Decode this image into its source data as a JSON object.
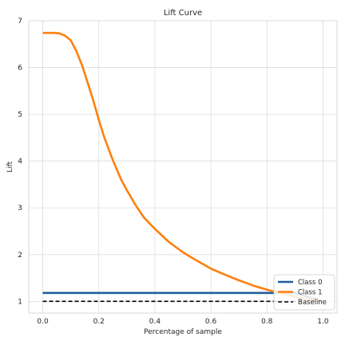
{
  "chart_data": {
    "type": "line",
    "title": "Lift Curve",
    "xlabel": "Percentage of sample",
    "ylabel": "Lift",
    "xlim": [
      -0.05,
      1.05
    ],
    "ylim": [
      0.75,
      7.0
    ],
    "x_ticks": [
      0.0,
      0.2,
      0.4,
      0.6,
      0.8,
      1.0
    ],
    "x_tick_labels": [
      "0.0",
      "0.2",
      "0.4",
      "0.6",
      "0.8",
      "1.0"
    ],
    "y_ticks": [
      1,
      2,
      3,
      4,
      5,
      6,
      7
    ],
    "y_tick_labels": [
      "1",
      "2",
      "3",
      "4",
      "5",
      "6",
      "7"
    ],
    "grid": true,
    "legend_position": "lower-right",
    "series": [
      {
        "name": "Class 0",
        "color": "#1f5f9e",
        "style": "solid",
        "x": [
          0.0,
          0.1,
          0.2,
          0.3,
          0.4,
          0.5,
          0.6,
          0.7,
          0.8,
          0.9,
          1.0
        ],
        "y": [
          1.18,
          1.18,
          1.18,
          1.18,
          1.18,
          1.18,
          1.18,
          1.18,
          1.18,
          1.18,
          1.0
        ]
      },
      {
        "name": "Class 1",
        "color": "#ff7f0e",
        "style": "solid",
        "x": [
          0.0,
          0.02,
          0.04,
          0.06,
          0.08,
          0.1,
          0.12,
          0.14,
          0.16,
          0.18,
          0.2,
          0.22,
          0.25,
          0.28,
          0.3,
          0.33,
          0.36,
          0.4,
          0.45,
          0.5,
          0.55,
          0.6,
          0.65,
          0.7,
          0.75,
          0.8,
          0.85,
          0.9,
          0.95,
          1.0
        ],
        "y": [
          6.74,
          6.74,
          6.74,
          6.73,
          6.68,
          6.58,
          6.35,
          6.05,
          5.68,
          5.3,
          4.88,
          4.5,
          4.02,
          3.6,
          3.38,
          3.07,
          2.8,
          2.55,
          2.27,
          2.05,
          1.87,
          1.7,
          1.57,
          1.45,
          1.34,
          1.25,
          1.17,
          1.1,
          1.04,
          1.0
        ]
      },
      {
        "name": "Baseline",
        "color": "#000000",
        "style": "dashed",
        "x": [
          0.0,
          1.0
        ],
        "y": [
          1.0,
          1.0
        ]
      }
    ]
  }
}
